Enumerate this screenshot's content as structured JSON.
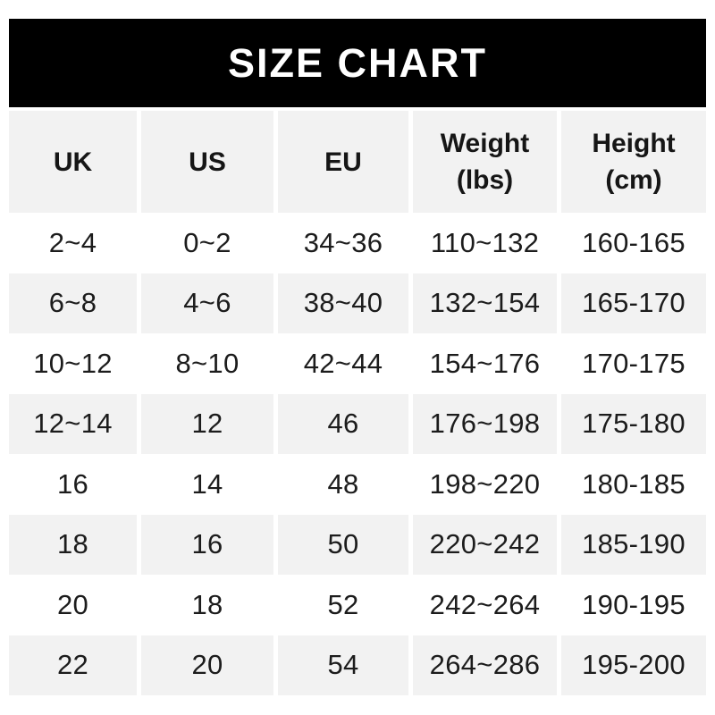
{
  "banner": {
    "title": "SIZE CHART",
    "background_color": "#000000",
    "text_color": "#ffffff"
  },
  "table": {
    "stripe_color": "#f2f2f2",
    "text_color": "#1c1c1c",
    "columns": [
      {
        "label": "UK",
        "sublabel": ""
      },
      {
        "label": "US",
        "sublabel": ""
      },
      {
        "label": "EU",
        "sublabel": ""
      },
      {
        "label": "Weight",
        "sublabel": "(lbs)"
      },
      {
        "label": "Height",
        "sublabel": "(cm)"
      }
    ],
    "rows": [
      [
        "2~4",
        "0~2",
        "34~36",
        "110~132",
        "160-165"
      ],
      [
        "6~8",
        "4~6",
        "38~40",
        "132~154",
        "165-170"
      ],
      [
        "10~12",
        "8~10",
        "42~44",
        "154~176",
        "170-175"
      ],
      [
        "12~14",
        "12",
        "46",
        "176~198",
        "175-180"
      ],
      [
        "16",
        "14",
        "48",
        "198~220",
        "180-185"
      ],
      [
        "18",
        "16",
        "50",
        "220~242",
        "185-190"
      ],
      [
        "20",
        "18",
        "52",
        "242~264",
        "190-195"
      ],
      [
        "22",
        "20",
        "54",
        "264~286",
        "195-200"
      ]
    ]
  },
  "chart_data": {
    "type": "table",
    "title": "SIZE CHART",
    "columns": [
      "UK",
      "US",
      "EU",
      "Weight (lbs)",
      "Height (cm)"
    ],
    "rows": [
      [
        "2~4",
        "0~2",
        "34~36",
        "110~132",
        "160-165"
      ],
      [
        "6~8",
        "4~6",
        "38~40",
        "132~154",
        "165-170"
      ],
      [
        "10~12",
        "8~10",
        "42~44",
        "154~176",
        "170-175"
      ],
      [
        "12~14",
        "12",
        "46",
        "176~198",
        "175-180"
      ],
      [
        "16",
        "14",
        "48",
        "198~220",
        "180-185"
      ],
      [
        "18",
        "16",
        "50",
        "220~242",
        "185-190"
      ],
      [
        "20",
        "18",
        "52",
        "242~264",
        "190-195"
      ],
      [
        "22",
        "20",
        "54",
        "264~286",
        "195-200"
      ]
    ],
    "layout_hints": {
      "header_background": "#f2f2f2",
      "row_striping": "white / #f2f2f2 alternating, starting white",
      "range_separator_first_four_columns": "~",
      "range_separator_height_column": "-"
    }
  }
}
